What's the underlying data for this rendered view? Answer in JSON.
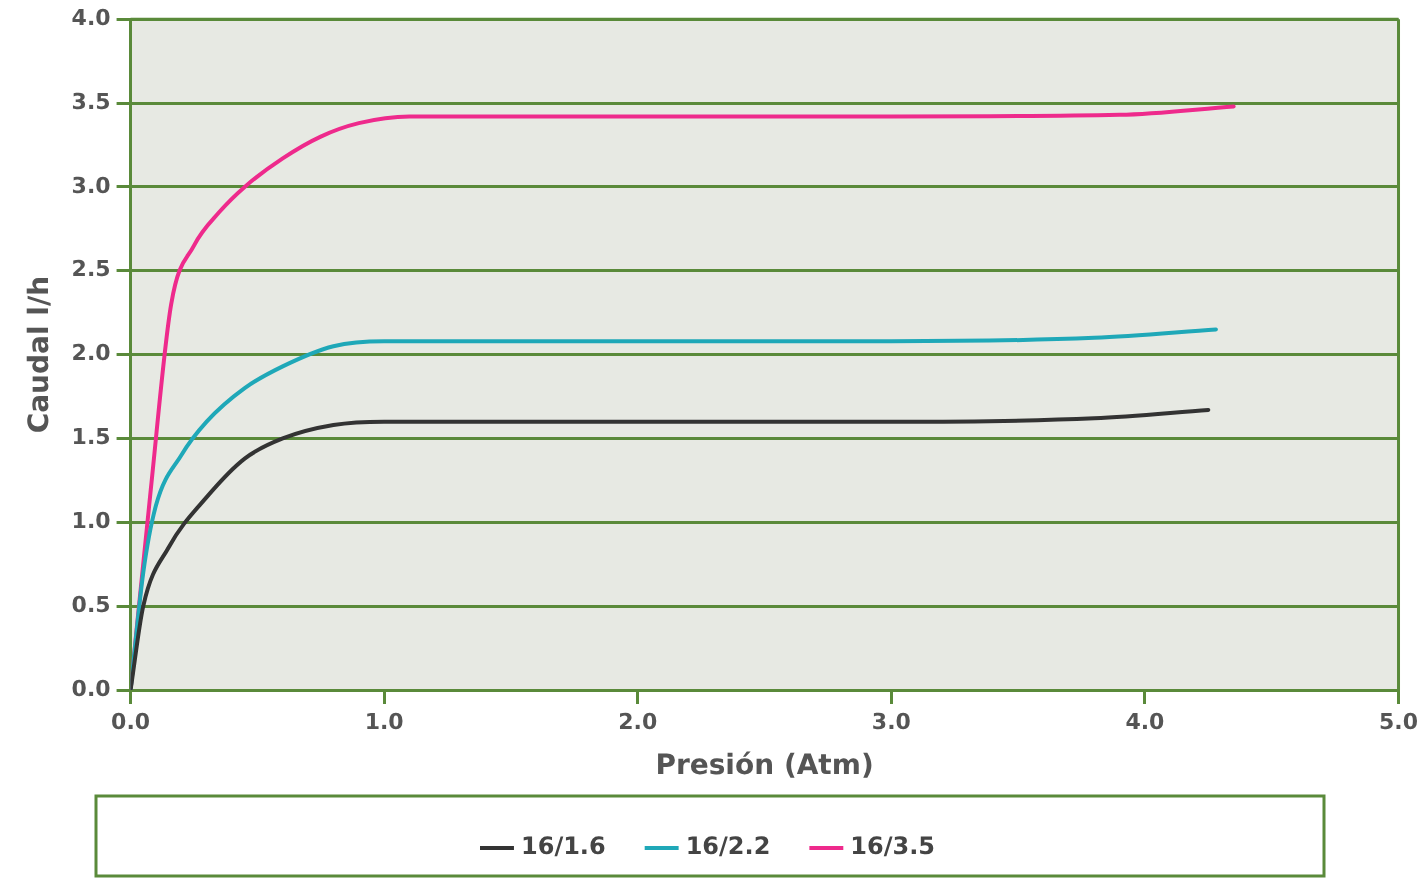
{
  "chart_data": {
    "type": "line",
    "xlabel": "Presión (Atm)",
    "ylabel": "Caudal l/h",
    "xlim": [
      0,
      5
    ],
    "xticks": [
      {
        "value": 0,
        "label": "0.0"
      },
      {
        "value": 1,
        "label": "1.0"
      },
      {
        "value": 2,
        "label": "2.0"
      },
      {
        "value": 3,
        "label": "3.0"
      },
      {
        "value": 4,
        "label": "4.0"
      },
      {
        "value": 5,
        "label": "5.0"
      }
    ],
    "ylim": [
      0,
      4
    ],
    "yticks": [
      {
        "value": 0,
        "label": "0.0"
      },
      {
        "value": 0.5,
        "label": "0.5"
      },
      {
        "value": 1,
        "label": "1.0"
      },
      {
        "value": 1.5,
        "label": "1.5"
      },
      {
        "value": 2,
        "label": "2.0"
      },
      {
        "value": 2.5,
        "label": "2.5"
      },
      {
        "value": 3,
        "label": "3.0"
      },
      {
        "value": 3.5,
        "label": "3.5"
      },
      {
        "value": 4,
        "label": "4.0"
      }
    ],
    "grid": "y",
    "legend": "bottom",
    "marker": "none",
    "line_style": "solid",
    "series": [
      {
        "name": "16/1.6",
        "color": "#333333",
        "x": [
          0,
          0.05,
          0.15,
          0.3,
          0.45,
          0.6,
          0.8,
          1.0,
          2.0,
          3.0,
          3.8,
          4.25
        ],
        "values": [
          0,
          0.5,
          0.85,
          1.15,
          1.38,
          1.5,
          1.58,
          1.6,
          1.6,
          1.6,
          1.62,
          1.67
        ]
      },
      {
        "name": "16/2.2",
        "color": "#1fa8b8",
        "x": [
          0,
          0.05,
          0.1,
          0.2,
          0.3,
          0.45,
          0.6,
          0.8,
          1.0,
          2.0,
          3.0,
          3.8,
          4.28
        ],
        "values": [
          0,
          0.7,
          1.1,
          1.4,
          1.6,
          1.8,
          1.93,
          2.05,
          2.08,
          2.08,
          2.08,
          2.1,
          2.15
        ]
      },
      {
        "name": "16/3.5",
        "color": "#ee2a8c",
        "x": [
          0,
          0.08,
          0.16,
          0.25,
          0.35,
          0.45,
          0.6,
          0.75,
          0.9,
          1.1,
          2.0,
          3.0,
          3.9,
          4.35
        ],
        "values": [
          0,
          1.2,
          2.3,
          2.65,
          2.85,
          3.0,
          3.17,
          3.3,
          3.38,
          3.42,
          3.42,
          3.42,
          3.43,
          3.48
        ]
      }
    ]
  }
}
